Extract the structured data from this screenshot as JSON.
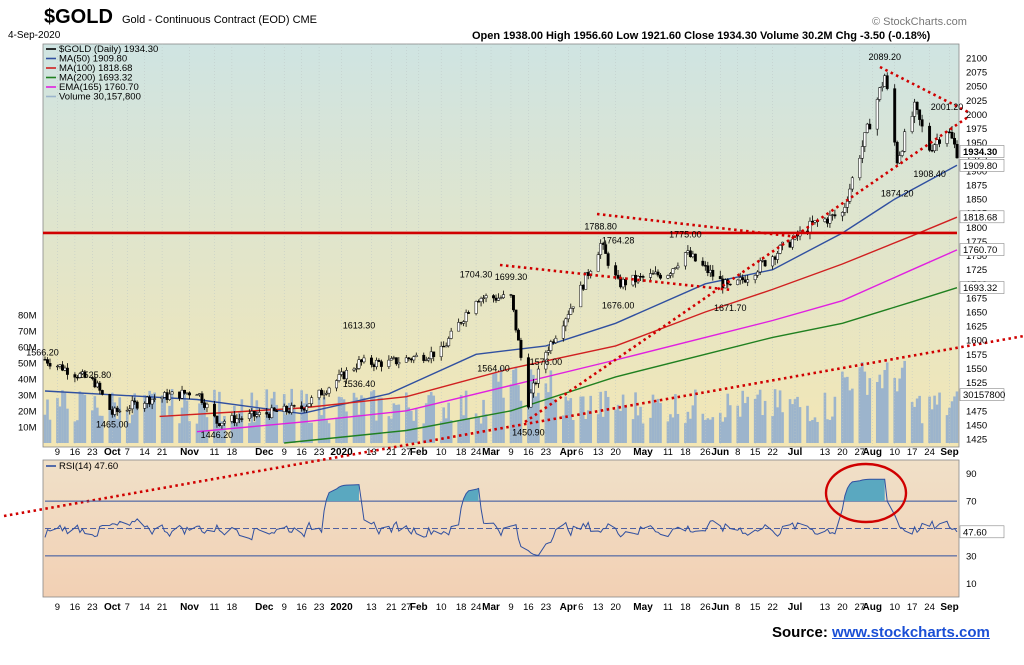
{
  "header": {
    "symbol": "$GOLD",
    "description": "Gold - Continuous Contract (EOD) CME",
    "date": "4-Sep-2020",
    "ohlc": "Open 1938.00  High 1956.60  Low 1921.60  Close 1934.30  Volume 30.2M  Chg -3.50 (-0.18%)",
    "brand": "© StockCharts.com",
    "source_label": "Source:",
    "source_link": "www.stockcharts.com"
  },
  "legend": {
    "price": "$GOLD (Daily) 1934.30",
    "ma50": "MA(50) 1909.80",
    "ma100": "MA(100) 1818.68",
    "ma200": "MA(200) 1693.32",
    "ema165": "EMA(165) 1760.70",
    "volume": "Volume 30,157,800",
    "rsi": "RSI(14) 47.60"
  },
  "colors": {
    "price": "#000000",
    "ma50": "#3050a0",
    "ma100": "#d02020",
    "ma200": "#208020",
    "ema165": "#e020e0",
    "volume": "#9cb4cc",
    "support": "#d00000",
    "rsi_line": "#3050a0",
    "rsi_fill": "#5aa8c0",
    "panel_top": "#cfe4e2",
    "panel_bottom": "#f3e6b4",
    "rsi_bg_top": "#f0e0c8",
    "rsi_bg_bottom": "#f2d0b4"
  },
  "price_axis": [
    "2100",
    "2075",
    "2050",
    "2025",
    "2000",
    "1975",
    "1950",
    "1925",
    "1900",
    "1875",
    "1850",
    "1825",
    "1800",
    "1775",
    "1750",
    "1725",
    "1700",
    "1675",
    "1650",
    "1625",
    "1600",
    "1575",
    "1550",
    "1525",
    "1500",
    "1475",
    "1450",
    "1425"
  ],
  "volume_axis": [
    "80M",
    "70M",
    "60M",
    "50M",
    "40M",
    "30M",
    "20M",
    "10M"
  ],
  "rsi_axis": [
    "90",
    "70",
    "50",
    "30",
    "10"
  ],
  "x_axis": [
    "9",
    "16",
    "23",
    "Oct",
    "7",
    "14",
    "21",
    "Nov",
    "11",
    "18",
    "Dec",
    "9",
    "16",
    "23",
    "2020",
    "13",
    "21",
    "27",
    "Feb",
    "10",
    "18",
    "24",
    "Mar",
    "9",
    "16",
    "23",
    "Apr",
    "6",
    "13",
    "20",
    "May",
    "11",
    "18",
    "26",
    "Jun",
    "8",
    "15",
    "22",
    "Jul",
    "13",
    "20",
    "27",
    "Aug",
    "10",
    "17",
    "24",
    "Sep"
  ],
  "x_axis_main": [
    "9",
    "16",
    "23",
    "Oct",
    "7",
    "14",
    "21",
    "Nov",
    "11",
    "18",
    "Dec",
    "9",
    "16",
    "23",
    "2020",
    "13",
    "21",
    "27",
    "Feb",
    "10",
    "18",
    "24",
    "Mar",
    "9",
    "16",
    "23",
    "Apr",
    "6",
    "13",
    "20",
    "May",
    "11",
    "18",
    "26",
    "Jun",
    "8",
    "15",
    "22",
    "Jul",
    "13",
    "20",
    "27",
    "Aug",
    "10",
    "17",
    "24",
    "Sep"
  ],
  "annotations": [
    {
      "text": "1566.20",
      "date": "Sep 3",
      "price": 1566.2
    },
    {
      "text": "1525.80",
      "date": "Sep 24",
      "price": 1525.8
    },
    {
      "text": "1465.00",
      "date": "Oct 1",
      "price": 1465.0
    },
    {
      "text": "1446.20",
      "date": "Nov 12",
      "price": 1446.2
    },
    {
      "text": "1613.30",
      "date": "Jan 8",
      "price": 1613.3
    },
    {
      "text": "1536.40",
      "date": "Jan 8",
      "price": 1536.4
    },
    {
      "text": "1704.30",
      "date": "Feb 24",
      "price": 1704.3
    },
    {
      "text": "1699.30",
      "date": "Mar 9",
      "price": 1699.3
    },
    {
      "text": "1564.00",
      "date": "Mar 2",
      "price": 1564.0
    },
    {
      "text": "1576.00",
      "date": "Mar 23",
      "price": 1576.0
    },
    {
      "text": "1450.90",
      "date": "Mar 16",
      "price": 1450.9
    },
    {
      "text": "1788.80",
      "date": "Apr 14",
      "price": 1788.8
    },
    {
      "text": "1764.28",
      "date": "Apr 21",
      "price": 1764.28
    },
    {
      "text": "1676.00",
      "date": "Apr 21",
      "price": 1676.0
    },
    {
      "text": "1775.00",
      "date": "May 18",
      "price": 1775.0
    },
    {
      "text": "1671.70",
      "date": "Jun 5",
      "price": 1671.7
    },
    {
      "text": "2089.20",
      "date": "Aug 6",
      "price": 2089.2
    },
    {
      "text": "1874.20",
      "date": "Aug 11",
      "price": 1874.2
    },
    {
      "text": "2001.20",
      "date": "Aug 31",
      "price": 2001.2
    },
    {
      "text": "1908.40",
      "date": "Aug 24",
      "price": 1908.4
    }
  ],
  "axis_tags": [
    {
      "text": "1934.30",
      "price": 1934.3,
      "bold": true
    },
    {
      "text": "1909.80",
      "price": 1909.8,
      "bold": false
    },
    {
      "text": "1818.68",
      "price": 1818.68,
      "bold": false
    },
    {
      "text": "1760.70",
      "price": 1760.7,
      "bold": false
    },
    {
      "text": "1693.32",
      "price": 1693.32,
      "bold": false
    },
    {
      "text": "30157800",
      "vol": 30.2,
      "bold": false
    },
    {
      "text": "47.60",
      "rsi": 47.6,
      "bold": false
    }
  ],
  "chart_data": [
    {
      "type": "candlestick",
      "title": "$GOLD (Daily) 1934.30",
      "x_range": [
        "2019-09-04",
        "2020-09-04"
      ],
      "ylim": [
        1420,
        2110
      ],
      "close_series_approx": [
        {
          "date": "2019-09-04",
          "close": 1566
        },
        {
          "date": "2019-09-24",
          "close": 1525
        },
        {
          "date": "2019-10-01",
          "close": 1470
        },
        {
          "date": "2019-10-15",
          "close": 1495
        },
        {
          "date": "2019-11-04",
          "close": 1510
        },
        {
          "date": "2019-11-12",
          "close": 1455
        },
        {
          "date": "2019-12-02",
          "close": 1470
        },
        {
          "date": "2019-12-16",
          "close": 1480
        },
        {
          "date": "2020-01-08",
          "close": 1560
        },
        {
          "date": "2020-01-20",
          "close": 1560
        },
        {
          "date": "2020-02-10",
          "close": 1580
        },
        {
          "date": "2020-02-24",
          "close": 1676
        },
        {
          "date": "2020-03-09",
          "close": 1675
        },
        {
          "date": "2020-03-16",
          "close": 1490
        },
        {
          "date": "2020-03-23",
          "close": 1580
        },
        {
          "date": "2020-04-06",
          "close": 1690
        },
        {
          "date": "2020-04-14",
          "close": 1770
        },
        {
          "date": "2020-04-21",
          "close": 1700
        },
        {
          "date": "2020-05-11",
          "close": 1720
        },
        {
          "date": "2020-05-18",
          "close": 1755
        },
        {
          "date": "2020-06-05",
          "close": 1690
        },
        {
          "date": "2020-06-22",
          "close": 1750
        },
        {
          "date": "2020-07-08",
          "close": 1805
        },
        {
          "date": "2020-07-20",
          "close": 1825
        },
        {
          "date": "2020-07-27",
          "close": 1930
        },
        {
          "date": "2020-08-06",
          "close": 2069
        },
        {
          "date": "2020-08-11",
          "close": 1920
        },
        {
          "date": "2020-08-18",
          "close": 2010
        },
        {
          "date": "2020-08-24",
          "close": 1940
        },
        {
          "date": "2020-08-31",
          "close": 1975
        },
        {
          "date": "2020-09-04",
          "close": 1934
        }
      ],
      "moving_averages": [
        {
          "name": "MA(50)",
          "last": 1909.8
        },
        {
          "name": "MA(100)",
          "last": 1818.68
        },
        {
          "name": "MA(200)",
          "last": 1693.32
        },
        {
          "name": "EMA(165)",
          "last": 1760.7
        }
      ],
      "horizontal_line": 1790,
      "volume_ylim": [
        0,
        85
      ],
      "volume_last": 30157800
    },
    {
      "type": "line",
      "title": "RSI(14) 47.60",
      "ylim": [
        0,
        100
      ],
      "levels": [
        70,
        50,
        30
      ],
      "last": 47.6
    }
  ]
}
